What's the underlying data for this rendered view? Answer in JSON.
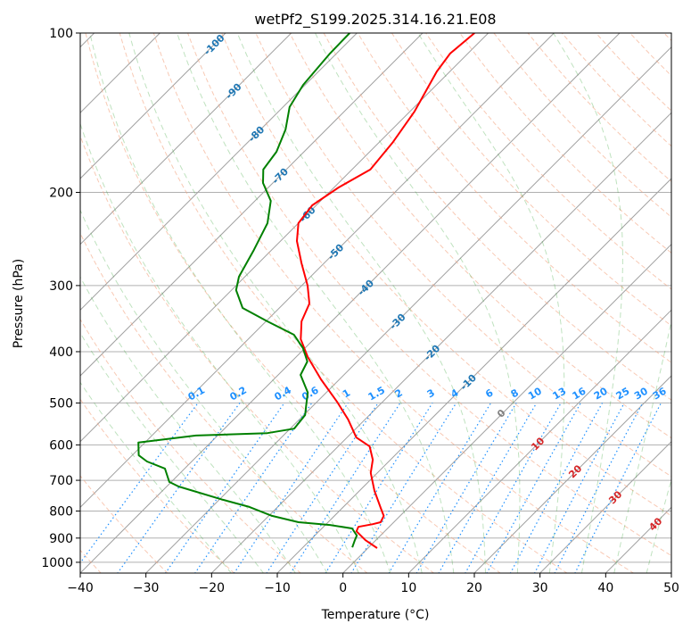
{
  "chart_data": {
    "type": "line",
    "subtype": "skew-t log-p",
    "title": "wetPf2_S199.2025.314.16.21.E08",
    "xlabel": "Temperature (°C)",
    "ylabel": "Pressure (hPa)",
    "xlim": [
      -40,
      50
    ],
    "ylim": [
      1050,
      100
    ],
    "x_ticks": [
      "−40",
      "−30",
      "−20",
      "−10",
      "0",
      "10",
      "20",
      "30",
      "40",
      "50"
    ],
    "x_tick_values": [
      -40,
      -30,
      -20,
      -10,
      0,
      10,
      20,
      30,
      40,
      50
    ],
    "y_ticks": [
      "100",
      "200",
      "300",
      "400",
      "500",
      "600",
      "700",
      "800",
      "900",
      "1000"
    ],
    "y_tick_values": [
      100,
      200,
      300,
      400,
      500,
      600,
      700,
      800,
      900,
      1000
    ],
    "grid": true,
    "isotherm_labels": [
      "-100",
      "-90",
      "-80",
      "-70",
      "-60",
      "-50",
      "-40",
      "-30",
      "-20",
      "-10"
    ],
    "mixing_ratio_labels": [
      "0.1",
      "0.2",
      "0.4",
      "0.6",
      "1",
      "1.5",
      "2",
      "3",
      "4",
      "6",
      "8",
      "10",
      "13",
      "16",
      "20",
      "25",
      "30",
      "36"
    ],
    "moist_adiabat_labels": [
      "0",
      "10",
      "20",
      "30",
      "40"
    ],
    "colors": {
      "temperature": "#ff0000",
      "dewpoint": "#008000",
      "isotherm_label": "#1f77b4",
      "mixing_ratio": "#1e90ff",
      "dry_adiabat": "#d2b48c",
      "moist_adiabat": "#2ca02c",
      "moist_label": "#d62728"
    },
    "series": [
      {
        "name": "Temperature",
        "color": "#ff0000",
        "p": [
          100,
          109.3,
          118.2,
          140.7,
          161.2,
          181.1,
          195.8,
          211.6,
          228.7,
          247.2,
          272.4,
          300.1,
          324.5,
          350.5,
          378.9,
          409.5,
          451.3,
          497,
          537,
          581,
          604,
          640,
          678,
          733,
          792,
          817,
          840,
          847,
          857,
          874,
          908,
          940
        ],
        "T": [
          -62.1,
          -62.7,
          -62.0,
          -59.3,
          -57.9,
          -57.2,
          -59.3,
          -60.6,
          -60.0,
          -57.5,
          -53.4,
          -49.1,
          -46.1,
          -44.6,
          -42.0,
          -38.2,
          -32.8,
          -27.0,
          -22.6,
          -18.6,
          -15.2,
          -12.7,
          -11.0,
          -7.7,
          -4.0,
          -2.5,
          -2.0,
          -2.9,
          -4.7,
          -4.3,
          -1.6,
          1.4
        ]
      },
      {
        "name": "Dewpoint",
        "color": "#008000",
        "p": [
          100,
          109.3,
          125.3,
          138,
          152.1,
          167.6,
          181.1,
          192,
          207.5,
          228.7,
          257,
          288.7,
          306,
          330.7,
          350.5,
          371.6,
          393.8,
          417.5,
          442.5,
          478,
          507,
          527,
          559,
          570,
          576,
          594,
          628,
          645,
          665,
          705,
          719,
          762,
          786,
          817,
          840,
          850,
          863,
          890,
          908,
          937
        ],
        "T": [
          -81.1,
          -81.0,
          -80.3,
          -79.0,
          -76.2,
          -74.2,
          -73.5,
          -71.5,
          -67.6,
          -64.7,
          -62.7,
          -60.9,
          -59.3,
          -55.6,
          -49.8,
          -43.7,
          -40.3,
          -37.6,
          -36.6,
          -32.8,
          -31.0,
          -29.8,
          -29.4,
          -32.8,
          -43.3,
          -51.0,
          -49.0,
          -46.8,
          -43.0,
          -40.3,
          -38.2,
          -29.4,
          -24.3,
          -19.5,
          -14.5,
          -9.3,
          -5.4,
          -3.6,
          -3.2,
          -2.5
        ]
      }
    ]
  }
}
